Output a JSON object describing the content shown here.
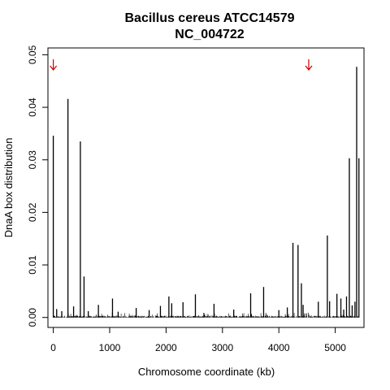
{
  "chart_data": {
    "type": "bar",
    "title": "Bacillus cereus ATCC14579",
    "subtitle": "NC_004722",
    "xlabel": "Chromosome coordinate (kb)",
    "ylabel": "DnaA box distribution",
    "xlim": [
      -95,
      5510
    ],
    "ylim": [
      -0.0019,
      0.0513
    ],
    "xticks": [
      0,
      1000,
      2000,
      3000,
      4000,
      5000
    ],
    "yticks": [
      0.0,
      0.01,
      0.02,
      0.03,
      0.04,
      0.05
    ],
    "ytick_labels": [
      "0.00",
      "0.01",
      "0.02",
      "0.03",
      "0.04",
      "0.05"
    ],
    "grid": false,
    "bar_color": "#000000",
    "annotations": [
      {
        "type": "arrow-down-icon",
        "x": 0,
        "color": "#cc0000"
      },
      {
        "type": "arrow-down-icon",
        "x": 4530,
        "color": "#cc0000"
      }
    ],
    "peaks": [
      {
        "x": 0,
        "y": 0.0346
      },
      {
        "x": 60,
        "y": 0.0016
      },
      {
        "x": 150,
        "y": 0.0012
      },
      {
        "x": 260,
        "y": 0.0416
      },
      {
        "x": 360,
        "y": 0.0021
      },
      {
        "x": 480,
        "y": 0.0335
      },
      {
        "x": 545,
        "y": 0.0078
      },
      {
        "x": 620,
        "y": 0.0012
      },
      {
        "x": 800,
        "y": 0.0024
      },
      {
        "x": 1050,
        "y": 0.0036
      },
      {
        "x": 1150,
        "y": 0.0011
      },
      {
        "x": 1470,
        "y": 0.0018
      },
      {
        "x": 1700,
        "y": 0.0014
      },
      {
        "x": 1900,
        "y": 0.0022
      },
      {
        "x": 2050,
        "y": 0.004
      },
      {
        "x": 2100,
        "y": 0.0027
      },
      {
        "x": 2300,
        "y": 0.0029
      },
      {
        "x": 2520,
        "y": 0.0044
      },
      {
        "x": 2850,
        "y": 0.0026
      },
      {
        "x": 3200,
        "y": 0.0015
      },
      {
        "x": 3500,
        "y": 0.0046
      },
      {
        "x": 3730,
        "y": 0.0058
      },
      {
        "x": 4000,
        "y": 0.0014
      },
      {
        "x": 4150,
        "y": 0.0019
      },
      {
        "x": 4250,
        "y": 0.0142
      },
      {
        "x": 4340,
        "y": 0.0138
      },
      {
        "x": 4400,
        "y": 0.0065
      },
      {
        "x": 4430,
        "y": 0.0024
      },
      {
        "x": 4700,
        "y": 0.003
      },
      {
        "x": 4860,
        "y": 0.0156
      },
      {
        "x": 4900,
        "y": 0.0031
      },
      {
        "x": 5030,
        "y": 0.0045
      },
      {
        "x": 5100,
        "y": 0.0036
      },
      {
        "x": 5150,
        "y": 0.0015
      },
      {
        "x": 5200,
        "y": 0.004
      },
      {
        "x": 5250,
        "y": 0.0303
      },
      {
        "x": 5300,
        "y": 0.0023
      },
      {
        "x": 5350,
        "y": 0.003
      },
      {
        "x": 5380,
        "y": 0.0477
      },
      {
        "x": 5420,
        "y": 0.0303
      }
    ]
  }
}
